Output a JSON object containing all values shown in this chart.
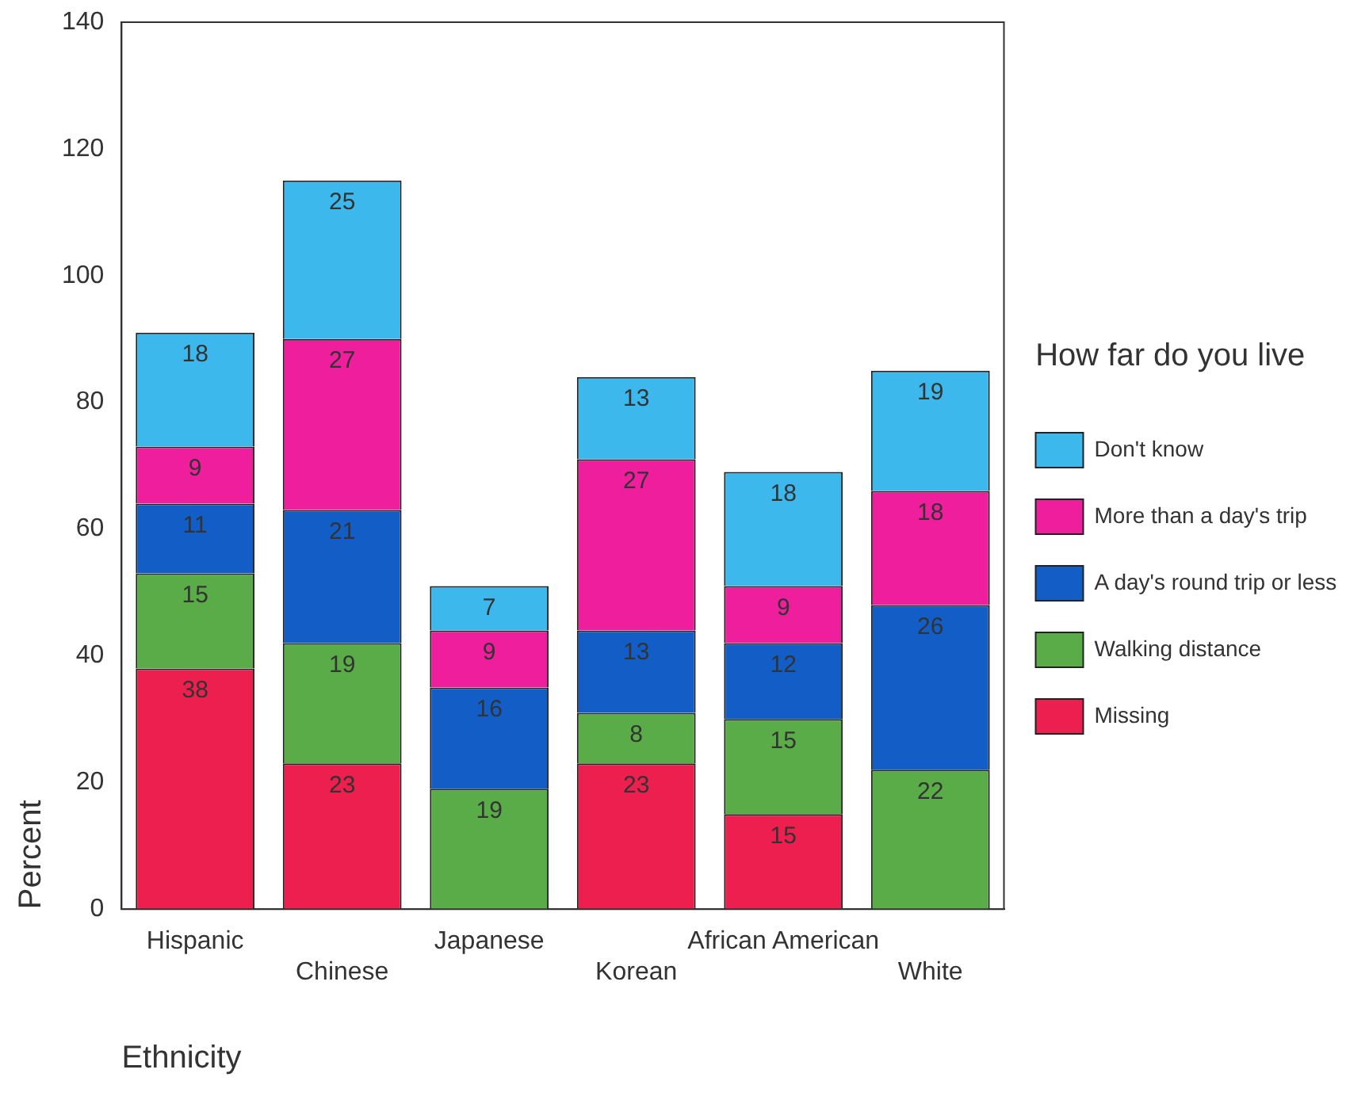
{
  "chart_data": {
    "type": "bar",
    "stacked": true,
    "xlabel": "Ethnicity",
    "ylabel": "Percent",
    "legend_title": "How far do you live",
    "legend": "right",
    "data_labels": true,
    "grid": false,
    "categories": [
      "Hispanic",
      "Chinese",
      "Japanese",
      "Korean",
      "African American",
      "White"
    ],
    "ylim": [
      0,
      140
    ],
    "yticks": [
      0,
      20,
      40,
      60,
      80,
      100,
      120,
      140
    ],
    "series": [
      {
        "name": "Missing",
        "color": "#ec1f4e",
        "values": [
          38,
          23,
          null,
          23,
          15,
          null
        ]
      },
      {
        "name": "Walking distance",
        "color": "#5aac48",
        "values": [
          15,
          19,
          19,
          8,
          15,
          22
        ]
      },
      {
        "name": "A day's round trip or less",
        "color": "#125ec6",
        "values": [
          11,
          21,
          16,
          13,
          12,
          26
        ]
      },
      {
        "name": "More than a day's trip",
        "color": "#ee1e9c",
        "values": [
          9,
          27,
          9,
          27,
          9,
          18
        ]
      },
      {
        "name": "Don't know",
        "color": "#3cb8ec",
        "values": [
          18,
          25,
          7,
          13,
          18,
          19
        ]
      }
    ]
  }
}
